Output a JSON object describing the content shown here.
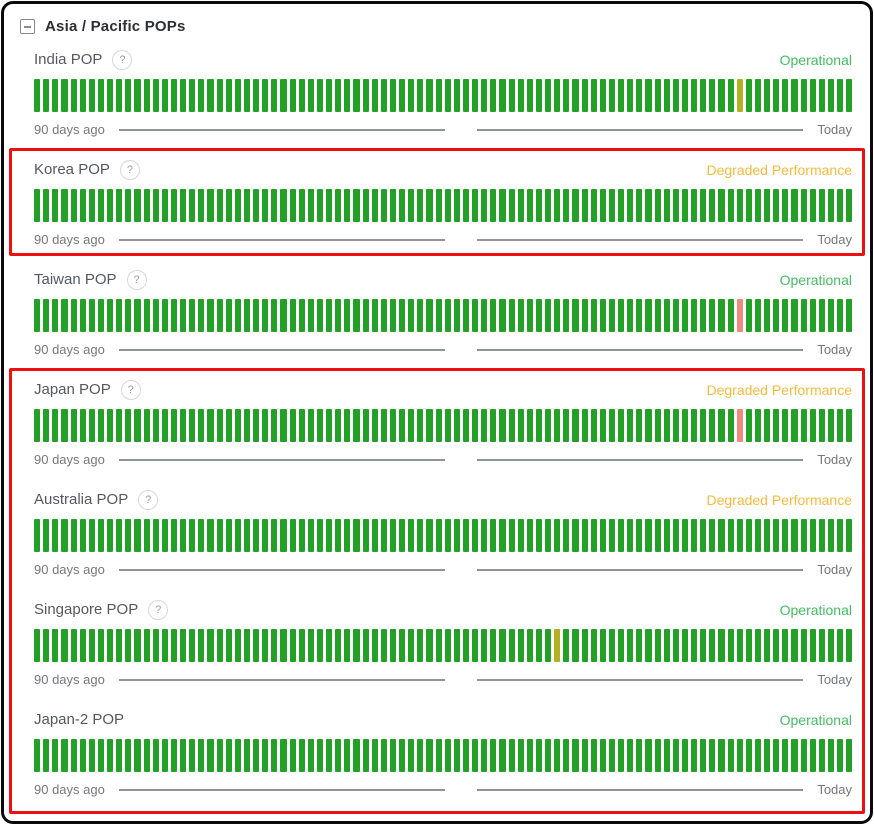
{
  "section": {
    "title": "Asia / Pacific POPs",
    "collapse_icon": "minus-box"
  },
  "legend": {
    "left_label": "90 days ago",
    "right_label": "Today"
  },
  "palette": {
    "bars": {
      "green": "#23a127",
      "yellow": "#b4b122",
      "red": "#f08a80"
    },
    "status": {
      "operational": "#44bd61",
      "degraded": "#f7ba3a"
    }
  },
  "annotations": {
    "color": "#ee0f10",
    "boxes": [
      {
        "from_row": 1,
        "to_row": 1
      },
      {
        "from_row": 3,
        "to_row": 6
      }
    ]
  },
  "pops": [
    {
      "name": "India POP",
      "has_help_icon": true,
      "status": "Operational",
      "status_type": "operational",
      "uptime_bars": {
        "total": 90,
        "default": "green",
        "incidents": [
          {
            "day_index": 77,
            "color": "yellow"
          }
        ]
      }
    },
    {
      "name": "Korea POP",
      "has_help_icon": true,
      "status": "Degraded Performance",
      "status_type": "degraded",
      "uptime_bars": {
        "total": 90,
        "default": "green",
        "incidents": []
      }
    },
    {
      "name": "Taiwan POP",
      "has_help_icon": true,
      "status": "Operational",
      "status_type": "operational",
      "uptime_bars": {
        "total": 90,
        "default": "green",
        "incidents": [
          {
            "day_index": 77,
            "color": "red"
          }
        ]
      }
    },
    {
      "name": "Japan POP",
      "has_help_icon": true,
      "status": "Degraded Performance",
      "status_type": "degraded",
      "uptime_bars": {
        "total": 90,
        "default": "green",
        "incidents": [
          {
            "day_index": 77,
            "color": "red"
          }
        ]
      }
    },
    {
      "name": "Australia POP",
      "has_help_icon": true,
      "status": "Degraded Performance",
      "status_type": "degraded",
      "uptime_bars": {
        "total": 90,
        "default": "green",
        "incidents": []
      }
    },
    {
      "name": "Singapore POP",
      "has_help_icon": true,
      "status": "Operational",
      "status_type": "operational",
      "uptime_bars": {
        "total": 90,
        "default": "green",
        "incidents": [
          {
            "day_index": 57,
            "color": "yellow"
          }
        ]
      }
    },
    {
      "name": "Japan-2 POP",
      "has_help_icon": false,
      "status": "Operational",
      "status_type": "operational",
      "uptime_bars": {
        "total": 90,
        "default": "green",
        "incidents": []
      }
    }
  ]
}
